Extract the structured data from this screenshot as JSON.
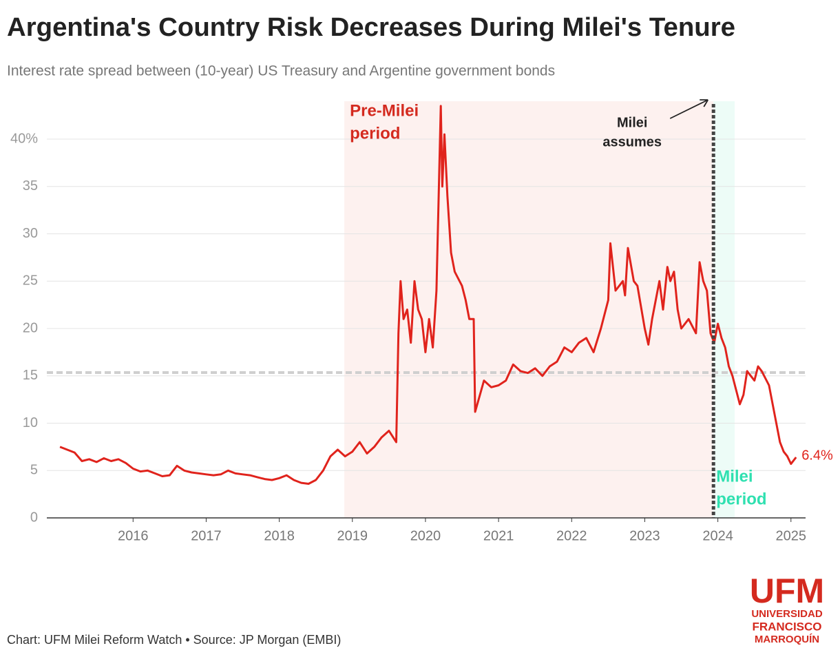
{
  "chart_data": {
    "type": "line",
    "title": "Argentina's Country Risk Decreases During Milei's Tenure",
    "subtitle": "Interest rate spread between (10-year) US Treasury and Argentine government bonds",
    "source": "Chart: UFM Milei Reform Watch • Source: JP Morgan (EMBI)",
    "logo": [
      "UFM",
      "UNIVERSIDAD",
      "FRANCISCO",
      "MARROQUÍN"
    ],
    "x": [
      2015.0,
      2015.1,
      2015.2,
      2015.3,
      2015.4,
      2015.5,
      2015.6,
      2015.7,
      2015.8,
      2015.9,
      2016.0,
      2016.1,
      2016.2,
      2016.3,
      2016.4,
      2016.5,
      2016.6,
      2016.7,
      2016.8,
      2016.9,
      2017.0,
      2017.1,
      2017.2,
      2017.3,
      2017.4,
      2017.5,
      2017.6,
      2017.7,
      2017.8,
      2017.9,
      2018.0,
      2018.1,
      2018.2,
      2018.3,
      2018.4,
      2018.5,
      2018.6,
      2018.7,
      2018.8,
      2018.9,
      2019.0,
      2019.1,
      2019.2,
      2019.3,
      2019.4,
      2019.5,
      2019.6,
      2019.63,
      2019.66,
      2019.7,
      2019.75,
      2019.8,
      2019.85,
      2019.9,
      2019.95,
      2020.0,
      2020.05,
      2020.1,
      2020.15,
      2020.21,
      2020.23,
      2020.26,
      2020.3,
      2020.35,
      2020.4,
      2020.5,
      2020.55,
      2020.6,
      2020.66,
      2020.68,
      2020.8,
      2020.9,
      2021.0,
      2021.1,
      2021.2,
      2021.3,
      2021.4,
      2021.5,
      2021.6,
      2021.7,
      2021.8,
      2021.9,
      2022.0,
      2022.1,
      2022.2,
      2022.3,
      2022.4,
      2022.5,
      2022.53,
      2022.6,
      2022.7,
      2022.73,
      2022.77,
      2022.85,
      2022.9,
      2023.0,
      2023.05,
      2023.1,
      2023.2,
      2023.25,
      2023.31,
      2023.35,
      2023.4,
      2023.45,
      2023.5,
      2023.6,
      2023.7,
      2023.75,
      2023.8,
      2023.85,
      2023.9,
      2023.95,
      2024.0,
      2024.05,
      2024.1,
      2024.15,
      2024.2,
      2024.3,
      2024.35,
      2024.4,
      2024.5,
      2024.55,
      2024.6,
      2024.7,
      2024.75,
      2024.8,
      2024.85,
      2024.9,
      2024.95,
      2025.0,
      2025.07
    ],
    "series": [
      {
        "color": "#e0231c",
        "values": [
          7.5,
          7.2,
          6.9,
          6.0,
          6.2,
          5.9,
          6.3,
          6.0,
          6.2,
          5.8,
          5.2,
          4.9,
          5.0,
          4.7,
          4.4,
          4.5,
          5.5,
          5.0,
          4.8,
          4.7,
          4.6,
          4.5,
          4.6,
          5.0,
          4.7,
          4.6,
          4.5,
          4.3,
          4.1,
          4.0,
          4.2,
          4.5,
          4.0,
          3.7,
          3.6,
          4.0,
          5.0,
          6.5,
          7.2,
          6.5,
          7.0,
          8.0,
          6.8,
          7.5,
          8.5,
          9.2,
          8.0,
          19.5,
          25,
          21,
          22,
          18.5,
          25,
          22,
          21,
          17.5,
          21,
          18,
          24,
          43.5,
          35,
          40.5,
          34,
          28,
          26,
          24.5,
          23,
          21,
          21,
          11.2,
          14.5,
          13.8,
          14,
          14.5,
          16.2,
          15.5,
          15.3,
          15.8,
          15.0,
          16.0,
          16.5,
          18,
          17.5,
          18.5,
          19,
          17.5,
          20,
          23,
          29,
          24,
          25,
          23.5,
          28.5,
          25,
          24.5,
          20,
          18.3,
          21,
          25,
          22,
          26.5,
          25,
          26,
          22,
          20,
          21,
          19.5,
          27,
          25,
          24,
          19.5,
          18.5,
          20.5,
          19,
          18,
          16,
          15,
          12,
          13,
          15.5,
          14.5,
          16,
          15.5,
          14,
          12,
          10,
          8,
          7,
          6.5,
          5.7,
          6.4
        ],
        "value_labels": [
          null,
          null,
          null,
          null,
          null,
          null,
          null,
          null,
          null,
          null,
          null,
          null,
          null,
          null,
          null,
          null,
          null,
          null,
          null,
          null,
          null,
          null,
          null,
          null,
          null,
          null,
          null,
          null,
          null,
          null,
          null,
          null,
          null,
          null,
          null,
          null,
          null,
          null,
          null,
          null,
          null,
          null,
          null,
          null,
          null,
          null,
          null,
          null,
          null,
          null,
          null,
          null,
          null,
          null,
          null,
          null,
          null,
          null,
          null,
          null,
          null,
          null,
          null,
          null,
          null,
          null,
          null,
          null,
          null,
          null,
          null,
          null,
          null,
          null,
          null,
          null,
          null,
          null,
          null,
          null,
          null,
          null,
          null,
          null,
          null,
          null,
          null,
          null,
          null,
          null,
          null,
          null,
          null,
          null,
          null,
          null,
          null,
          null,
          null,
          null,
          null,
          null,
          null,
          null,
          null,
          null,
          null,
          null,
          null,
          null,
          null,
          null,
          null,
          null,
          null,
          null,
          null,
          null,
          null,
          null,
          null,
          null,
          null,
          null,
          null,
          null,
          null,
          null,
          null,
          null,
          "6.4%"
        ]
      }
    ],
    "xlim": [
      2014.82,
      2025.2
    ],
    "xticks": [
      2016,
      2017,
      2018,
      2019,
      2020,
      2021,
      2022,
      2023,
      2024,
      2025
    ],
    "ylim": [
      0,
      44
    ],
    "yticks": [
      0,
      5,
      10,
      15,
      20,
      25,
      30,
      35,
      {
        "value": 40,
        "label": "40%"
      }
    ],
    "grid": true,
    "reference_y": 15.35,
    "periods": [
      {
        "label": [
          "Pre-Milei",
          "period"
        ],
        "start": 2018.89,
        "end": 2023.94,
        "color": "#fdf1ef",
        "label_color": "#d42a1f"
      },
      {
        "label": [
          "Milei",
          "period"
        ],
        "start": 2023.94,
        "end": 2024.23,
        "color": "#edfcf7",
        "label_color": "#2fe0b0"
      }
    ],
    "marker": {
      "x": 2023.94,
      "label": [
        "Milei",
        "assumes"
      ]
    }
  }
}
